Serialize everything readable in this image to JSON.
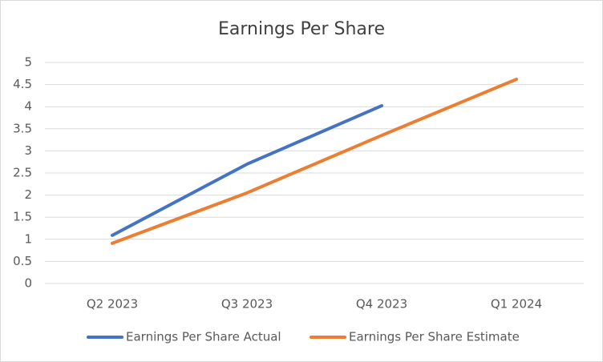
{
  "chart_data": {
    "type": "line",
    "title": "Earnings Per Share",
    "categories": [
      "Q2 2023",
      "Q3 2023",
      "Q4 2023",
      "Q1 2024"
    ],
    "series": [
      {
        "name": "Earnings Per Share Actual",
        "color": "#4472c4",
        "values": [
          1.09,
          2.7,
          4.02,
          null
        ]
      },
      {
        "name": "Earnings Per Share Estimate",
        "color": "#ed7d31",
        "values": [
          0.91,
          2.05,
          3.35,
          4.62
        ]
      }
    ],
    "ylim": [
      0,
      5
    ],
    "yticks": [
      0,
      0.5,
      1,
      1.5,
      2,
      2.5,
      3,
      3.5,
      4,
      4.5,
      5
    ],
    "grid": true,
    "legend": "bottom"
  }
}
